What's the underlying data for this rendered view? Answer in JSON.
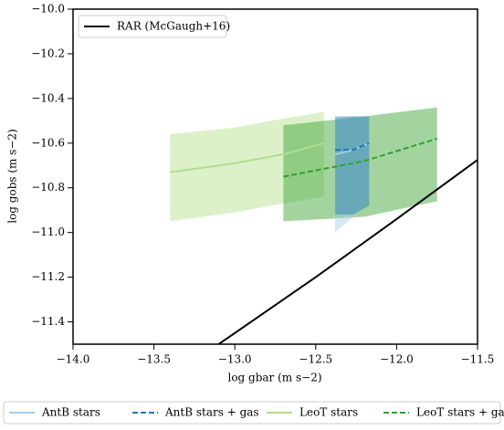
{
  "chart_data": {
    "type": "line",
    "xlabel": "log gbar (m s−2)",
    "ylabel": "log gobs (m s−2)",
    "xlim": [
      -14.0,
      -11.5
    ],
    "ylim": [
      -11.5,
      -10.0
    ],
    "xticks": [
      {
        "value": -14.0,
        "label": "−14.0"
      },
      {
        "value": -13.5,
        "label": "−13.5"
      },
      {
        "value": -13.0,
        "label": "−13.0"
      },
      {
        "value": -12.5,
        "label": "−12.5"
      },
      {
        "value": -12.0,
        "label": "−12.0"
      },
      {
        "value": -11.5,
        "label": "−11.5"
      }
    ],
    "yticks": [
      {
        "value": -11.4,
        "label": "−11.4"
      },
      {
        "value": -11.2,
        "label": "−11.2"
      },
      {
        "value": -11.0,
        "label": "−11.0"
      },
      {
        "value": -10.8,
        "label": "−10.8"
      },
      {
        "value": -10.6,
        "label": "−10.6"
      },
      {
        "value": -10.4,
        "label": "−10.4"
      },
      {
        "value": -10.2,
        "label": "−10.2"
      },
      {
        "value": -10.0,
        "label": "−10.0"
      }
    ],
    "series": [
      {
        "name": "LeoT stars",
        "color": "#b2df8a",
        "dash": false,
        "x": [
          -13.4,
          -13.0,
          -12.7,
          -12.45
        ],
        "values": [
          -10.73,
          -10.69,
          -10.65,
          -10.6
        ],
        "upper": [
          -10.56,
          -10.53,
          -10.49,
          -10.46
        ],
        "lower": [
          -10.95,
          -10.91,
          -10.87,
          -10.84
        ]
      },
      {
        "name": "LeoT stars + gas",
        "color": "#33a02c",
        "dash": true,
        "x": [
          -12.7,
          -12.2,
          -11.75
        ],
        "values": [
          -10.75,
          -10.68,
          -10.58
        ],
        "upper": [
          -10.52,
          -10.48,
          -10.44
        ],
        "lower": [
          -10.95,
          -10.93,
          -10.86
        ]
      },
      {
        "name": "AntB stars",
        "color": "#a6cee3",
        "dash": false,
        "x": [
          -12.38,
          -12.27,
          -12.17
        ],
        "values": [
          -10.65,
          -10.63,
          -10.6
        ],
        "upper": [
          -10.49,
          -10.48,
          -10.48
        ],
        "lower": [
          -11.0,
          -10.93,
          -10.85
        ]
      },
      {
        "name": "AntB stars + gas",
        "color": "#1f78b4",
        "dash": true,
        "x": [
          -12.38,
          -12.27,
          -12.17
        ],
        "values": [
          -10.63,
          -10.63,
          -10.6
        ],
        "upper": [
          -10.48,
          -10.48,
          -10.48
        ],
        "lower": [
          -10.92,
          -10.92,
          -10.88
        ]
      }
    ],
    "reference": {
      "name": "RAR (McGaugh+16)",
      "color": "#000000",
      "x": [
        -13.1,
        -13.0,
        -12.5,
        -12.0,
        -11.5
      ],
      "values": [
        -11.5,
        -11.45,
        -11.2,
        -10.94,
        -10.675
      ]
    },
    "legend_order": [
      2,
      3,
      0,
      1
    ]
  }
}
